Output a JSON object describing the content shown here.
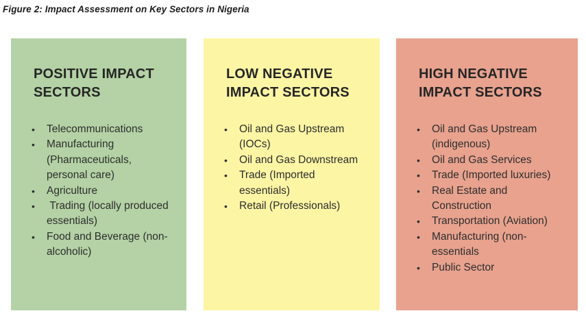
{
  "figure_title": "Figure 2: Impact Assessment on Key Sectors in Nigeria",
  "bullet_char": "•",
  "colors": {
    "positive_bg": "#b4d2a5",
    "low_negative_bg": "#fcf5a4",
    "high_negative_bg": "#e8a28e",
    "text": "#2b2b2b"
  },
  "panels": [
    {
      "title": "POSITIVE IMPACT SECTORS",
      "bg_color": "#b4d2a5",
      "items": [
        "Telecommunications",
        "Manufacturing (Pharmaceuticals, personal care)",
        "Agriculture",
        " Trading (locally produced essentials)",
        "Food and Beverage (non-alcoholic)"
      ]
    },
    {
      "title": "LOW NEGATIVE IMPACT SECTORS",
      "bg_color": "#fcf5a4",
      "items": [
        "Oil and Gas Upstream (IOCs)",
        "Oil and Gas Downstream",
        "Trade (Imported essentials)",
        "Retail (Professionals)"
      ]
    },
    {
      "title": "HIGH NEGATIVE IMPACT SECTORS",
      "bg_color": "#e8a28e",
      "items": [
        "Oil and Gas Upstream (indigenous)",
        "Oil and Gas Services",
        "Trade (Imported luxuries)",
        "Real Estate and Construction",
        "Transportation (Aviation)",
        "Manufacturing (non-essentials",
        "Public Sector"
      ]
    }
  ]
}
